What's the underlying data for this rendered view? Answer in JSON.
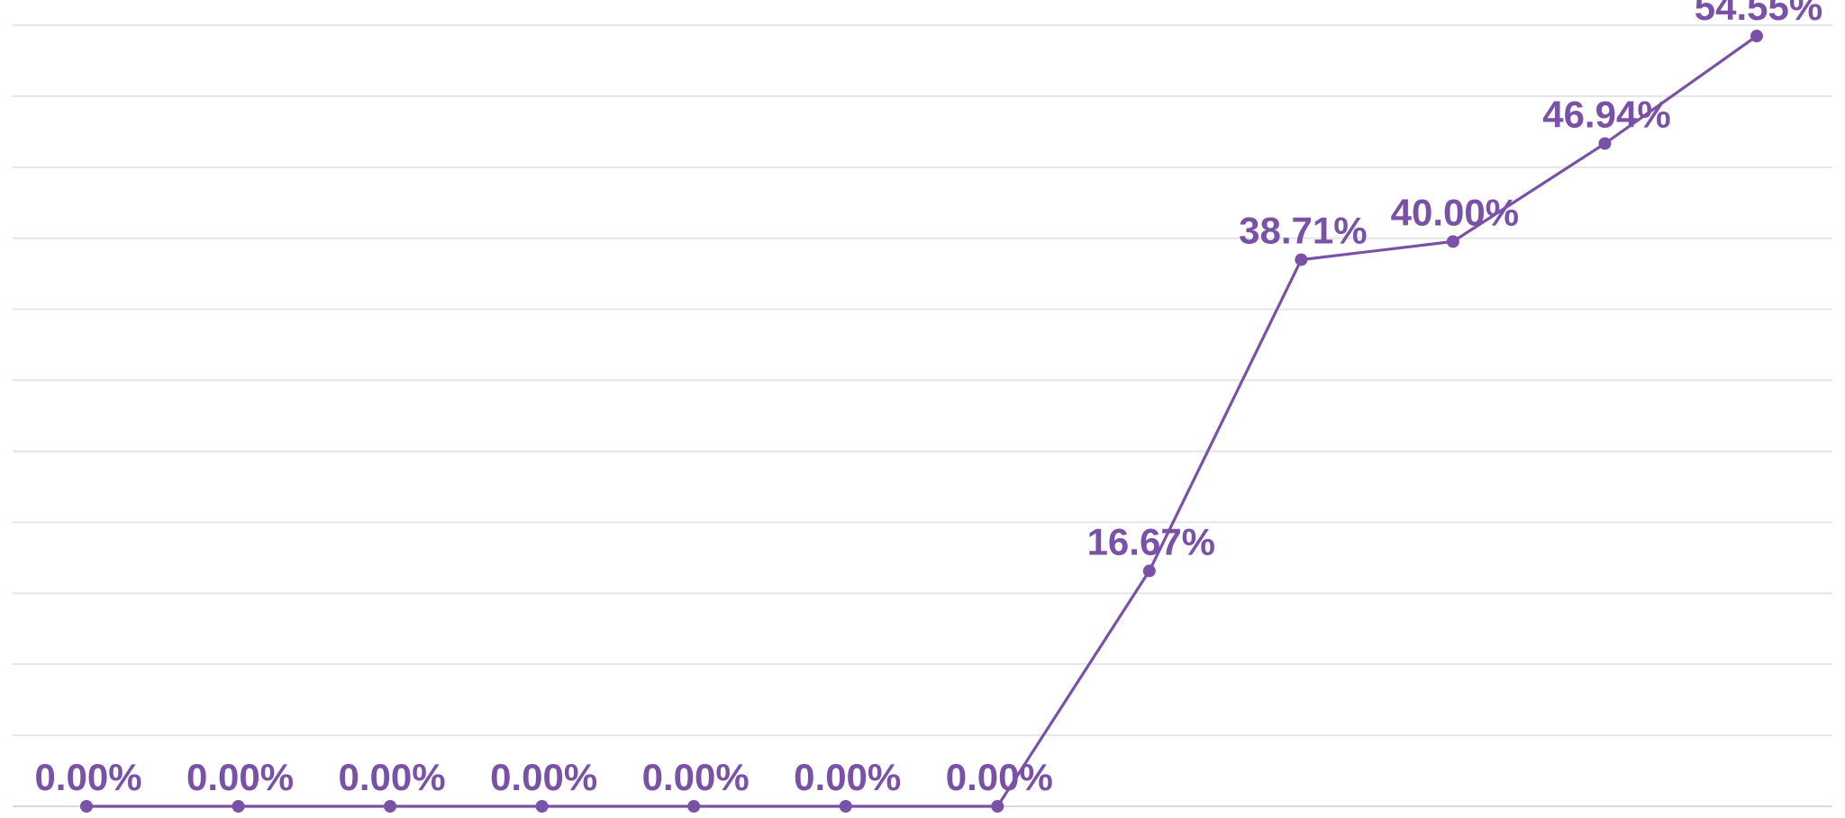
{
  "chart_data": {
    "type": "line",
    "title": "",
    "xlabel": "",
    "ylabel": "",
    "ylim": [
      0,
      55
    ],
    "grid": "horizontal",
    "legend": "none",
    "categories": [
      "",
      "",
      "",
      "",
      "",
      "",
      "",
      "",
      "",
      "",
      "",
      ""
    ],
    "series": [
      {
        "values": [
          0.0,
          0.0,
          0.0,
          0.0,
          0.0,
          0.0,
          0.0,
          16.67,
          38.71,
          40.0,
          46.94,
          54.55
        ],
        "labels": [
          "0.00%",
          "0.00%",
          "0.00%",
          "0.00%",
          "0.00%",
          "0.00%",
          "0.00%",
          "16.67%",
          "38.71%",
          "40.00%",
          "46.94%",
          "54.55%"
        ],
        "color": "#7952a8"
      }
    ]
  }
}
